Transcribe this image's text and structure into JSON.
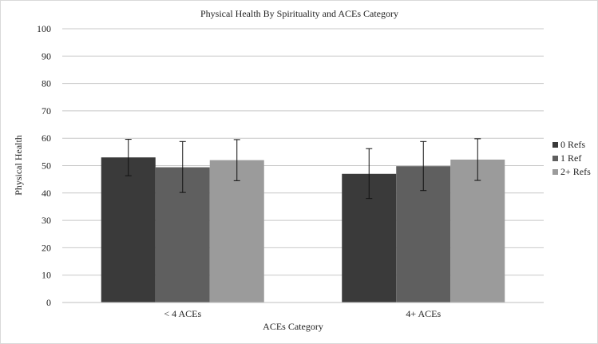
{
  "chart_data": {
    "type": "bar",
    "title": "Physical Health By Spirituality and ACEs Category",
    "xlabel": "ACEs Category",
    "ylabel": "Physical Health",
    "ylim": [
      0,
      100
    ],
    "yticks": [
      0,
      10,
      20,
      30,
      40,
      50,
      60,
      70,
      80,
      90,
      100
    ],
    "grid": true,
    "legend_position": "right",
    "categories": [
      "< 4 ACEs",
      "4+ ACEs"
    ],
    "series": [
      {
        "name": "0 Refs",
        "color": "#3a3a3a",
        "values": [
          53,
          47
        ],
        "error_low": [
          46.3,
          38
        ],
        "error_high": [
          59.6,
          56.2
        ]
      },
      {
        "name": "1 Ref",
        "color": "#5f5f5f",
        "values": [
          49.4,
          49.8
        ],
        "error_low": [
          40.2,
          40.9
        ],
        "error_high": [
          58.8,
          58.8
        ]
      },
      {
        "name": "2+ Refs",
        "color": "#9b9b9b",
        "values": [
          52,
          52.2
        ],
        "error_low": [
          44.5,
          44.6
        ],
        "error_high": [
          59.5,
          59.8
        ]
      }
    ]
  }
}
